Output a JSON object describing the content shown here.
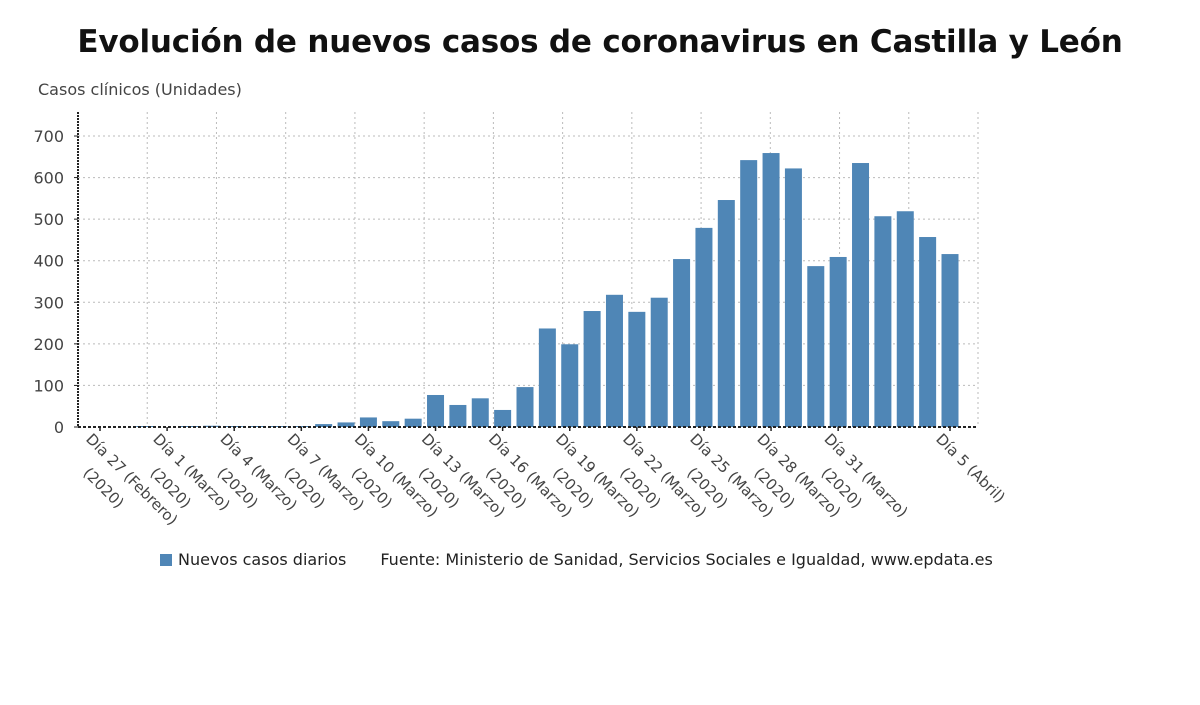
{
  "chart_data": {
    "type": "bar",
    "title": "Evolución de nuevos casos de coronavirus en Castilla y León",
    "ylabel": "Casos clínicos (Unidades)",
    "xlabel": "",
    "ylim": [
      0,
      750
    ],
    "yticks": [
      0,
      100,
      200,
      300,
      400,
      500,
      600,
      700
    ],
    "grid": true,
    "legend_position": "bottom",
    "color": "#4f86b6",
    "categories": [
      "27 Feb",
      "28 Feb",
      "29 Feb",
      "1 Mar",
      "2 Mar",
      "3 Mar",
      "4 Mar",
      "5 Mar",
      "6 Mar",
      "7 Mar",
      "8 Mar",
      "9 Mar",
      "10 Mar",
      "11 Mar",
      "12 Mar",
      "13 Mar",
      "14 Mar",
      "15 Mar",
      "16 Mar",
      "17 Mar",
      "18 Mar",
      "19 Mar",
      "20 Mar",
      "21 Mar",
      "22 Mar",
      "23 Mar",
      "24 Mar",
      "25 Mar",
      "26 Mar",
      "27 Mar",
      "28 Mar",
      "29 Mar",
      "30 Mar",
      "31 Mar",
      "1 Apr",
      "2 Apr",
      "3 Apr",
      "4 Apr",
      "5 Apr"
    ],
    "series": [
      {
        "name": "Nuevos casos diarios",
        "values": [
          0,
          0,
          1,
          0,
          1,
          3,
          1,
          1,
          2,
          1,
          7,
          11,
          23,
          14,
          20,
          77,
          53,
          69,
          41,
          96,
          237,
          199,
          279,
          318,
          277,
          311,
          404,
          479,
          546,
          642,
          659,
          622,
          387,
          409,
          635,
          507,
          519,
          457,
          416
        ]
      }
    ],
    "xtick_labels": [
      {
        "index": 0,
        "lines": [
          "Día 27 (Febrero)",
          "(2020)"
        ]
      },
      {
        "index": 3,
        "lines": [
          "Día 1 (Marzo)",
          "(2020)"
        ]
      },
      {
        "index": 6,
        "lines": [
          "Día 4 (Marzo)",
          "(2020)"
        ]
      },
      {
        "index": 9,
        "lines": [
          "Día 7 (Marzo)",
          "(2020)"
        ]
      },
      {
        "index": 12,
        "lines": [
          "Día 10 (Marzo)",
          "(2020)"
        ]
      },
      {
        "index": 15,
        "lines": [
          "Día 13 (Marzo)",
          "(2020)"
        ]
      },
      {
        "index": 18,
        "lines": [
          "Día 16 (Marzo)",
          "(2020)"
        ]
      },
      {
        "index": 21,
        "lines": [
          "Día 19 (Marzo)",
          "(2020)"
        ]
      },
      {
        "index": 24,
        "lines": [
          "Día 22 (Marzo)",
          "(2020)"
        ]
      },
      {
        "index": 27,
        "lines": [
          "Día 25 (Marzo)",
          "(2020)"
        ]
      },
      {
        "index": 30,
        "lines": [
          "Día 28 (Marzo)",
          "(2020)"
        ]
      },
      {
        "index": 33,
        "lines": [
          "Día 31 (Marzo)",
          "(2020)"
        ]
      },
      {
        "index": 38,
        "lines": [
          "Día 5 (Abril)"
        ]
      }
    ],
    "legend": [
      "Nuevos casos diarios"
    ],
    "source": "Fuente: Ministerio de Sanidad, Servicios Sociales e Igualdad, www.epdata.es"
  }
}
